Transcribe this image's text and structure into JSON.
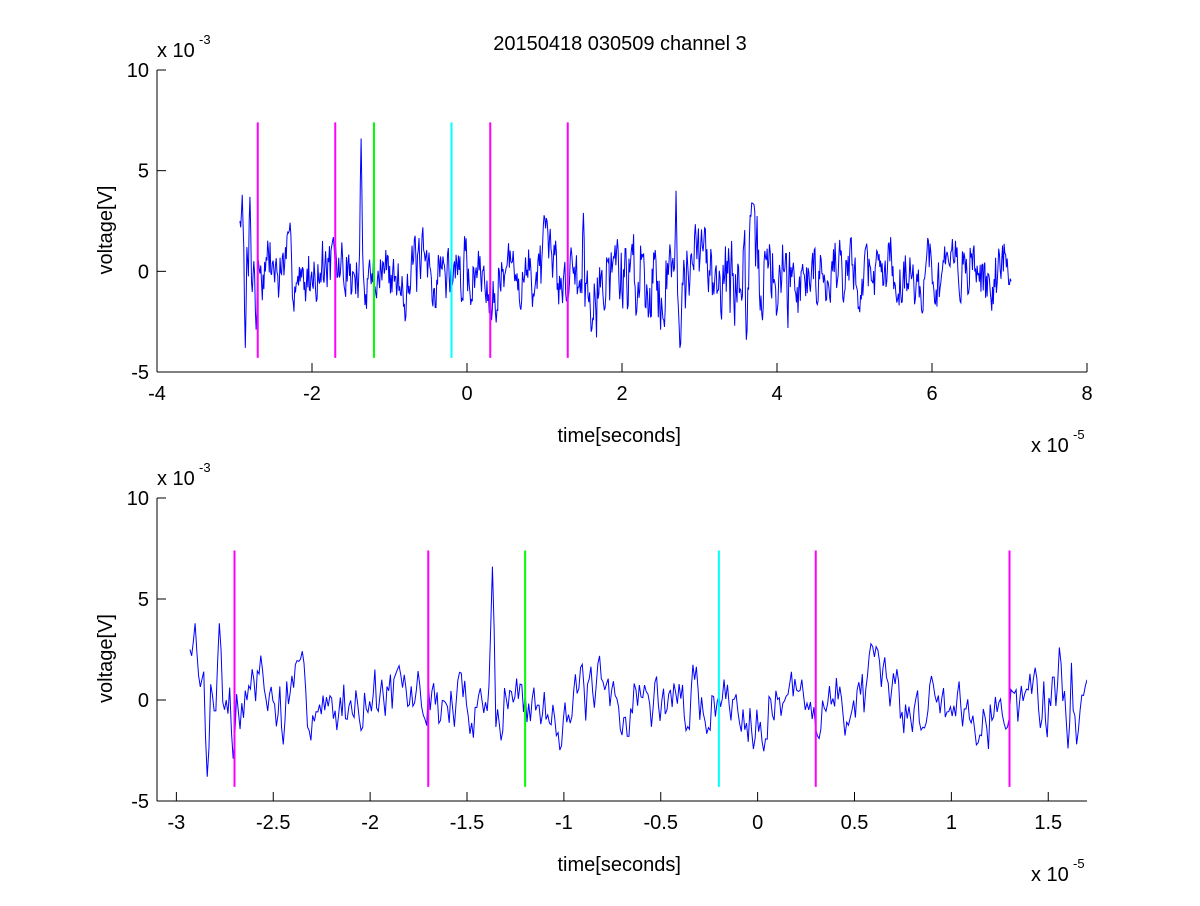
{
  "figure": {
    "title": "20150418 030509 channel 3"
  },
  "chart_data": [
    {
      "type": "line",
      "title": "20150418 030509 channel 3",
      "xlabel": "time[seconds]",
      "ylabel": "voltage[V]",
      "x_exponent_label": "x 10",
      "x_exponent_power": "-5",
      "y_exponent_label": "x 10",
      "y_exponent_power": "-3",
      "xlim": [
        -4,
        8
      ],
      "ylim": [
        -5,
        10
      ],
      "xticks": [
        -4,
        -2,
        0,
        2,
        4,
        6,
        8
      ],
      "xtick_labels": [
        "-4",
        "-2",
        "0",
        "2",
        "4",
        "6",
        "8"
      ],
      "yticks": [
        -5,
        0,
        5,
        10
      ],
      "ytick_labels": [
        "-5",
        "0",
        "5",
        "10"
      ],
      "grid": false,
      "series": [
        {
          "color": "#0000ff",
          "x_range": [
            -2.93,
            7.02
          ],
          "n_points": 1000,
          "seed": 7,
          "start_value": 2.5,
          "end_value": -0.5,
          "features": [
            {
              "x": -2.9,
              "y": 3.8
            },
            {
              "x": -2.86,
              "y": -3.8
            },
            {
              "x": -2.8,
              "y": 3.7
            },
            {
              "x": -2.72,
              "y": -2.9
            },
            {
              "x": -1.37,
              "y": 6.6
            },
            {
              "x": 2.7,
              "y": 4.0
            },
            {
              "x": 2.75,
              "y": -3.8
            },
            {
              "x": 3.6,
              "y": -3.4
            },
            {
              "x": 3.65,
              "y": 2.8
            },
            {
              "x": 1.5,
              "y": 2.9
            }
          ]
        }
      ],
      "markers": [
        {
          "x": -2.7,
          "color": "#ff00ff",
          "y_range": [
            -4.3,
            7.4
          ]
        },
        {
          "x": -1.7,
          "color": "#ff00ff",
          "y_range": [
            -4.3,
            7.4
          ]
        },
        {
          "x": -1.2,
          "color": "#00ff00",
          "y_range": [
            -4.3,
            7.4
          ]
        },
        {
          "x": -0.2,
          "color": "#00ffff",
          "y_range": [
            -4.3,
            7.4
          ]
        },
        {
          "x": 0.3,
          "color": "#ff00ff",
          "y_range": [
            -4.3,
            7.4
          ]
        },
        {
          "x": 1.3,
          "color": "#ff00ff",
          "y_range": [
            -4.3,
            7.4
          ]
        }
      ]
    },
    {
      "type": "line",
      "title": "",
      "xlabel": "time[seconds]",
      "ylabel": "voltage[V]",
      "x_exponent_label": "x 10",
      "x_exponent_power": "-5",
      "y_exponent_label": "x 10",
      "y_exponent_power": "-3",
      "xlim": [
        -3.1,
        1.7
      ],
      "ylim": [
        -5,
        10
      ],
      "xticks": [
        -3,
        -2.5,
        -2,
        -1.5,
        -1,
        -0.5,
        0,
        0.5,
        1,
        1.5
      ],
      "xtick_labels": [
        "-3",
        "-2.5",
        "-2",
        "-1.5",
        "-1",
        "-0.5",
        "0",
        "0.5",
        "1",
        "1.5"
      ],
      "yticks": [
        -5,
        0,
        5,
        10
      ],
      "ytick_labels": [
        "-5",
        "0",
        "5",
        "10"
      ],
      "grid": false,
      "series": [
        {
          "color": "#0000ff",
          "x_range": [
            -2.93,
            1.7
          ],
          "n_points": 520,
          "seed": 7,
          "start_value": 2.5,
          "end_value": 1.0,
          "features": [
            {
              "x": -2.9,
              "y": 3.8
            },
            {
              "x": -2.84,
              "y": -3.8
            },
            {
              "x": -2.78,
              "y": 3.8
            },
            {
              "x": -2.71,
              "y": -2.9
            },
            {
              "x": -2.56,
              "y": 2.2
            },
            {
              "x": -2.45,
              "y": -2.2
            },
            {
              "x": -1.37,
              "y": 6.6
            },
            {
              "x": -1.32,
              "y": -2.0
            },
            {
              "x": 1.56,
              "y": 2.6
            },
            {
              "x": 1.6,
              "y": -2.4
            }
          ]
        }
      ],
      "markers": [
        {
          "x": -2.7,
          "color": "#ff00ff",
          "y_range": [
            -4.3,
            7.4
          ]
        },
        {
          "x": -1.7,
          "color": "#ff00ff",
          "y_range": [
            -4.3,
            7.4
          ]
        },
        {
          "x": -1.2,
          "color": "#00ff00",
          "y_range": [
            -4.3,
            7.4
          ]
        },
        {
          "x": -0.2,
          "color": "#00ffff",
          "y_range": [
            -4.3,
            7.4
          ]
        },
        {
          "x": 0.3,
          "color": "#ff00ff",
          "y_range": [
            -4.3,
            7.4
          ]
        },
        {
          "x": 1.3,
          "color": "#ff00ff",
          "y_range": [
            -4.3,
            7.4
          ]
        }
      ]
    }
  ]
}
